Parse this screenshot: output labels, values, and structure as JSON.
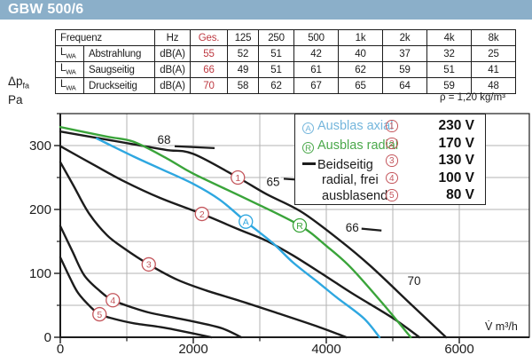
{
  "title": "GBW 500/6",
  "rho_label": "ρ = 1,20 kg/m³",
  "table": {
    "header": {
      "col1": "Frequenz",
      "hz": "Hz",
      "ges": "Ges.",
      "bands": [
        "125",
        "250",
        "500",
        "1k",
        "2k",
        "4k",
        "8k"
      ]
    },
    "rows": [
      {
        "lwa": "L",
        "lwa_sub": "WA",
        "name": "Abstrahlung",
        "unit": "dB(A)",
        "ges": "55",
        "values": [
          "52",
          "51",
          "42",
          "40",
          "37",
          "32",
          "25"
        ]
      },
      {
        "lwa": "L",
        "lwa_sub": "WA",
        "name": "Saugseitig",
        "unit": "dB(A)",
        "ges": "66",
        "values": [
          "49",
          "51",
          "61",
          "62",
          "59",
          "51",
          "41"
        ]
      },
      {
        "lwa": "L",
        "lwa_sub": "WA",
        "name": "Druckseitig",
        "unit": "dB(A)",
        "ges": "70",
        "values": [
          "58",
          "62",
          "67",
          "65",
          "64",
          "59",
          "48"
        ]
      }
    ]
  },
  "axis": {
    "y_label_main": "Δp",
    "y_label_sub": "fa",
    "y_label_unit": "Pa",
    "x_unit": "V̇ m³/h",
    "y_ticks": [
      0,
      100,
      200,
      300
    ],
    "x_ticks": [
      0,
      2000,
      4000,
      6000
    ]
  },
  "legend": {
    "outlets": [
      {
        "symbol": "A",
        "label": "Ausblas axial",
        "color": "#74b6dc"
      },
      {
        "symbol": "R",
        "label": "Ausblas radial",
        "color": "#4aa84a"
      }
    ],
    "both": {
      "line1": "Beidseitig",
      "line2": "radial, frei",
      "line3": "ausblasend",
      "color": "#1c1c1c"
    },
    "voltages": [
      {
        "num": "1",
        "value": "230 V"
      },
      {
        "num": "2",
        "value": "170 V"
      },
      {
        "num": "3",
        "value": "130 V"
      },
      {
        "num": "4",
        "value": "100 V"
      },
      {
        "num": "5",
        "value": "80 V"
      }
    ]
  },
  "colors": {
    "titlebar": "#8bafc9",
    "red": "#be3a42",
    "marker_red": "#c4565c",
    "curve_black": "#1c1c1c",
    "curve_blue": "#2ea7e0",
    "curve_green": "#3aa43a",
    "grid": "#b3b3b3"
  },
  "chart_data": {
    "type": "line",
    "title": "GBW 500/6 fan performance curves",
    "xlabel": "V̇ m³/h",
    "ylabel": "Δp fa Pa",
    "xlim": [
      0,
      7053
    ],
    "ylim": [
      0,
      350
    ],
    "x_grid_step": 1000,
    "y_grid_step": 50,
    "grid": true,
    "legend_position": "top-right",
    "series": [
      {
        "name": "1 – 230 V beidseitig radial, frei ausblasend",
        "color": "#1c1c1c",
        "points": [
          [
            0,
            322
          ],
          [
            1100,
            302
          ],
          [
            1600,
            293
          ],
          [
            2000,
            287
          ],
          [
            2670,
            250
          ],
          [
            3100,
            224
          ],
          [
            3630,
            196
          ],
          [
            4200,
            152
          ],
          [
            4670,
            111
          ],
          [
            5290,
            50
          ],
          [
            5800,
            0
          ]
        ]
      },
      {
        "name": "2 – 170 V",
        "color": "#1c1c1c",
        "points": [
          [
            0,
            299
          ],
          [
            500,
            270
          ],
          [
            960,
            244
          ],
          [
            1500,
            218
          ],
          [
            2130,
            193
          ],
          [
            2700,
            168
          ],
          [
            3100,
            151
          ],
          [
            3500,
            128
          ],
          [
            4000,
            95
          ],
          [
            4400,
            68
          ],
          [
            5000,
            30
          ],
          [
            5400,
            0
          ]
        ]
      },
      {
        "name": "3 – 130 V",
        "color": "#1c1c1c",
        "points": [
          [
            0,
            274
          ],
          [
            200,
            237
          ],
          [
            430,
            194
          ],
          [
            700,
            160
          ],
          [
            960,
            139
          ],
          [
            1330,
            114
          ],
          [
            1760,
            90
          ],
          [
            2200,
            73
          ],
          [
            2700,
            57
          ],
          [
            3230,
            39
          ],
          [
            3890,
            16
          ],
          [
            4300,
            0
          ]
        ]
      },
      {
        "name": "4 – 100 V",
        "color": "#1c1c1c",
        "points": [
          [
            0,
            174
          ],
          [
            180,
            135
          ],
          [
            360,
            97
          ],
          [
            600,
            72
          ],
          [
            790,
            58
          ],
          [
            1100,
            46
          ],
          [
            1360,
            38
          ],
          [
            1700,
            31
          ],
          [
            2030,
            24
          ],
          [
            2430,
            14
          ],
          [
            2720,
            0
          ]
        ]
      },
      {
        "name": "5 – 80 V",
        "color": "#1c1c1c",
        "points": [
          [
            0,
            125
          ],
          [
            150,
            92
          ],
          [
            270,
            69
          ],
          [
            450,
            48
          ],
          [
            590,
            36
          ],
          [
            800,
            29
          ],
          [
            1100,
            22
          ],
          [
            1500,
            16
          ],
          [
            1760,
            11
          ],
          [
            2270,
            0
          ]
        ]
      },
      {
        "name": "A – Ausblas axial (230 V)",
        "color": "#2ea7e0",
        "points": [
          [
            550,
            311
          ],
          [
            1100,
            283
          ],
          [
            1500,
            264
          ],
          [
            2000,
            240
          ],
          [
            2400,
            215
          ],
          [
            2790,
            181
          ],
          [
            3200,
            147
          ],
          [
            3500,
            117
          ],
          [
            3900,
            84
          ],
          [
            4160,
            62
          ],
          [
            4560,
            30
          ],
          [
            4800,
            0
          ]
        ]
      },
      {
        "name": "R – Ausblas radial (230 V)",
        "color": "#3aa43a",
        "points": [
          [
            0,
            329
          ],
          [
            700,
            314
          ],
          [
            1100,
            306
          ],
          [
            1600,
            280
          ],
          [
            2000,
            256
          ],
          [
            2830,
            215
          ],
          [
            3600,
            175
          ],
          [
            4000,
            143
          ],
          [
            4360,
            110
          ],
          [
            4830,
            55
          ],
          [
            5270,
            0
          ]
        ]
      }
    ],
    "markers": [
      {
        "text": "1",
        "x": 2670,
        "y": 250,
        "color": "#c4565c"
      },
      {
        "text": "2",
        "x": 2130,
        "y": 193,
        "color": "#c4565c"
      },
      {
        "text": "3",
        "x": 1330,
        "y": 114,
        "color": "#c4565c"
      },
      {
        "text": "4",
        "x": 790,
        "y": 58,
        "color": "#c4565c"
      },
      {
        "text": "5",
        "x": 590,
        "y": 36,
        "color": "#c4565c"
      },
      {
        "text": "A",
        "x": 2790,
        "y": 181,
        "color": "#2ea7e0"
      },
      {
        "text": "R",
        "x": 3600,
        "y": 175,
        "color": "#3aa43a"
      }
    ],
    "annotations": [
      {
        "text": "68",
        "x": 1560,
        "y": 310,
        "dash": [
          1720,
          299,
          2320,
          296
        ]
      },
      {
        "text": "65",
        "x": 3200,
        "y": 244,
        "dash": [
          3360,
          248,
          3790,
          245
        ]
      },
      {
        "text": "66",
        "x": 4390,
        "y": 172,
        "dash": [
          4530,
          170,
          4830,
          167
        ]
      },
      {
        "text": "70",
        "x": 5320,
        "y": 89,
        "dash": null
      }
    ]
  }
}
